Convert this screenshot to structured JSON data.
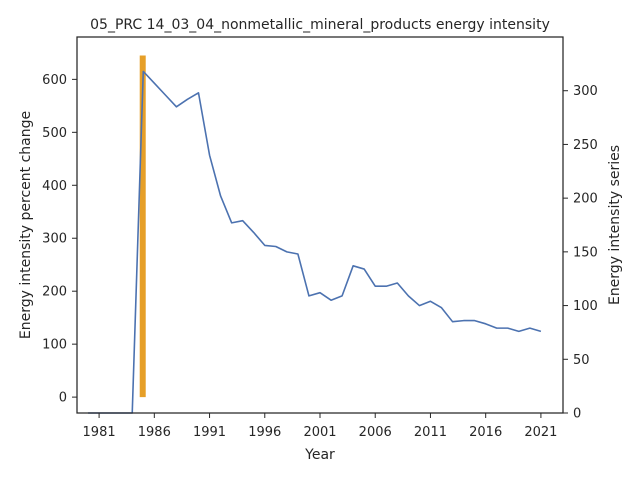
{
  "chart_data": {
    "type": "line",
    "title": "05_PRC 14_03_04_nonmetallic_mineral_products energy intensity",
    "xlabel": "Year",
    "ylabel_left": "Energy intensity percent change",
    "ylabel_right": "Energy intensity series",
    "xlim": [
      1979,
      2023
    ],
    "ylim_left": [
      -30,
      680
    ],
    "ylim_right": [
      0,
      350
    ],
    "x_ticks": [
      "1981",
      "1986",
      "1991",
      "1996",
      "2001",
      "2006",
      "2011",
      "2016",
      "2021"
    ],
    "y_left_ticks": [
      "0",
      "100",
      "200",
      "300",
      "400",
      "500",
      "600"
    ],
    "y_right_ticks": [
      "0",
      "50",
      "100",
      "150",
      "200",
      "250",
      "300"
    ],
    "grid": false,
    "series": [
      {
        "axis": "right",
        "color": "#4c72b0",
        "x": [
          1980,
          1981,
          1982,
          1983,
          1984,
          1985,
          1986,
          1987,
          1988,
          1989,
          1990,
          1991,
          1992,
          1993,
          1994,
          1995,
          1996,
          1997,
          1998,
          1999,
          2000,
          2001,
          2002,
          2003,
          2004,
          2005,
          2006,
          2007,
          2008,
          2009,
          2010,
          2011,
          2012,
          2013,
          2014,
          2015,
          2016,
          2017,
          2018,
          2019,
          2020,
          2021
        ],
        "y": [
          0,
          0,
          0,
          0,
          0,
          318,
          307,
          296,
          285,
          292,
          298,
          240,
          202,
          177,
          179,
          168,
          156,
          155,
          150,
          148,
          109,
          112,
          105,
          109,
          137,
          134,
          118,
          118,
          121,
          109,
          100,
          104,
          98,
          85,
          86,
          86,
          83,
          79,
          79,
          76,
          79,
          76
        ]
      }
    ],
    "highlight": {
      "color": "#e69f28",
      "x": 1984.95,
      "y_range": [
        0,
        645
      ]
    }
  }
}
